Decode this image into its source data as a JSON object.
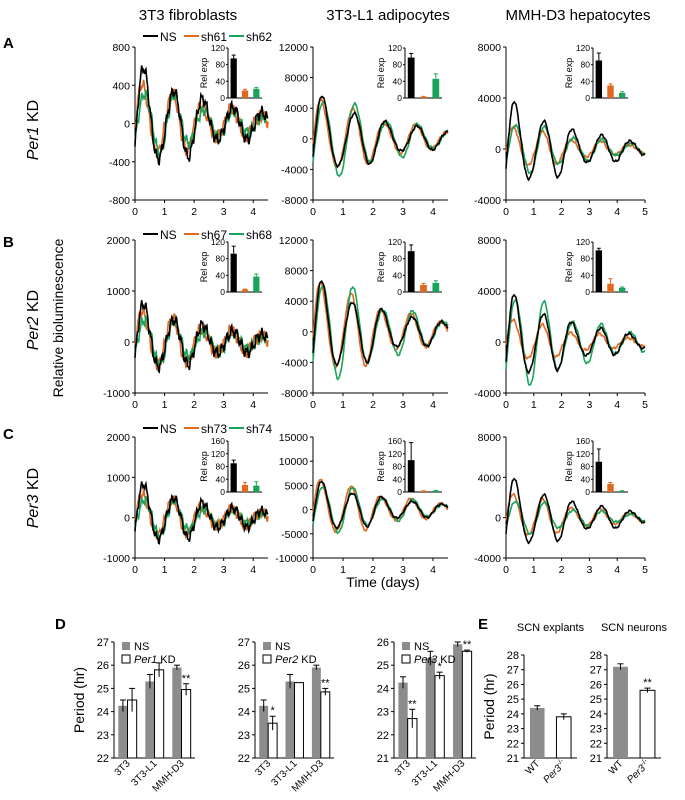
{
  "colors": {
    "ns": "#000000",
    "kd1": "#e2681f",
    "kd2": "#1aa35a",
    "bar_ns": "#8c8c8c",
    "bar_kd": "#ffffff"
  },
  "column_titles": [
    "3T3 fibroblasts",
    "3T3-L1 adipocytes",
    "MMH-D3 hepatocytes"
  ],
  "panel_letters": [
    "A",
    "B",
    "C",
    "D",
    "E"
  ],
  "row_labels": [
    {
      "gene": "Per1",
      "suffix": " KD"
    },
    {
      "gene": "Per2",
      "suffix": " KD"
    },
    {
      "gene": "Per3",
      "suffix": " KD"
    }
  ],
  "y_axis_label": "Relative bioluminescence",
  "x_axis_label": "Time (days)",
  "inset_ylabel": "Rel exp",
  "legends": [
    [
      "NS",
      "sh61",
      "sh62"
    ],
    [
      "NS",
      "sh67",
      "sh68"
    ],
    [
      "NS",
      "sh73",
      "sh74"
    ]
  ],
  "chart_data": [
    {
      "id": "A1",
      "type": "line",
      "row": 0,
      "col": 0,
      "ylim": [
        -800,
        800
      ],
      "yticks": [
        -800,
        -400,
        0,
        400,
        800
      ],
      "xlim": [
        0,
        4.5
      ],
      "xticks": [
        0,
        1,
        2,
        3,
        4
      ],
      "period_days": 1.0,
      "amplitudes": [
        700,
        560,
        500
      ],
      "inset": {
        "ymax": 120,
        "yticks": [
          0,
          40,
          80,
          120
        ],
        "values": [
          95,
          18,
          22
        ],
        "errors": [
          8,
          3,
          3
        ]
      }
    },
    {
      "id": "A2",
      "type": "line",
      "row": 0,
      "col": 1,
      "ylim": [
        -8000,
        12000
      ],
      "yticks": [
        -8000,
        -4000,
        0,
        4000,
        8000,
        12000
      ],
      "xlim": [
        0,
        4.5
      ],
      "xticks": [
        0,
        1,
        2,
        3,
        4
      ],
      "period_days": 1.05,
      "amplitudes": [
        6800,
        7000,
        7800
      ],
      "inset": {
        "ymax": 120,
        "yticks": [
          0,
          40,
          80,
          120
        ],
        "values": [
          97,
          3,
          46
        ],
        "errors": [
          10,
          1,
          12
        ]
      }
    },
    {
      "id": "A3",
      "type": "line",
      "row": 0,
      "col": 2,
      "ylim": [
        -4000,
        8000
      ],
      "yticks": [
        -4000,
        0,
        4000,
        8000
      ],
      "xlim": [
        0,
        5
      ],
      "xticks": [
        0,
        1,
        2,
        3,
        4,
        5
      ],
      "period_days": 1.04,
      "amplitudes": [
        4500,
        2400,
        3000
      ],
      "inset": {
        "ymax": 120,
        "yticks": [
          0,
          40,
          80,
          120
        ],
        "values": [
          90,
          30,
          12
        ],
        "errors": [
          18,
          4,
          3
        ]
      }
    },
    {
      "id": "B1",
      "type": "line",
      "row": 1,
      "col": 0,
      "ylim": [
        -1000,
        2000
      ],
      "yticks": [
        -1000,
        0,
        1000,
        2000
      ],
      "xlim": [
        0,
        4.5
      ],
      "xticks": [
        0,
        1,
        2,
        3,
        4
      ],
      "period_days": 1.0,
      "amplitudes": [
        900,
        820,
        700
      ],
      "inset": {
        "ymax": 120,
        "yticks": [
          0,
          40,
          80,
          120
        ],
        "values": [
          92,
          6,
          37
        ],
        "errors": [
          18,
          1,
          6
        ]
      }
    },
    {
      "id": "B2",
      "type": "line",
      "row": 1,
      "col": 1,
      "ylim": [
        -8000,
        12000
      ],
      "yticks": [
        -8000,
        -4000,
        0,
        4000,
        8000,
        12000
      ],
      "xlim": [
        0,
        4.5
      ],
      "xticks": [
        0,
        1,
        2,
        3,
        4
      ],
      "period_days": 1.0,
      "amplitudes": [
        8000,
        8800,
        9800
      ],
      "inset": {
        "ymax": 120,
        "yticks": [
          0,
          40,
          80,
          120
        ],
        "values": [
          98,
          17,
          22
        ],
        "errors": [
          15,
          4,
          5
        ]
      }
    },
    {
      "id": "B3",
      "type": "line",
      "row": 1,
      "col": 2,
      "ylim": [
        -4000,
        8000
      ],
      "yticks": [
        -4000,
        0,
        4000,
        8000
      ],
      "xlim": [
        0,
        5
      ],
      "xticks": [
        0,
        1,
        2,
        3,
        4,
        5
      ],
      "period_days": 1.03,
      "amplitudes": [
        4500,
        2400,
        5400
      ],
      "inset": {
        "ymax": 120,
        "yticks": [
          0,
          40,
          80,
          120
        ],
        "values": [
          100,
          20,
          10
        ],
        "errors": [
          5,
          12,
          2
        ]
      }
    },
    {
      "id": "C1",
      "type": "line",
      "row": 2,
      "col": 0,
      "ylim": [
        -1000,
        2000
      ],
      "yticks": [
        -1000,
        0,
        1000,
        2000
      ],
      "xlim": [
        0,
        4.5
      ],
      "xticks": [
        0,
        1,
        2,
        3,
        4
      ],
      "period_days": 1.0,
      "amplitudes": [
        1000,
        800,
        720
      ],
      "inset": {
        "ymax": 160,
        "yticks": [
          0,
          40,
          80,
          120,
          160
        ],
        "values": [
          90,
          22,
          20
        ],
        "errors": [
          10,
          8,
          12
        ]
      }
    },
    {
      "id": "C2",
      "type": "line",
      "row": 2,
      "col": 1,
      "ylim": [
        -10000,
        15000
      ],
      "yticks": [
        -10000,
        -5000,
        0,
        5000,
        10000,
        15000
      ],
      "xlim": [
        0,
        4.5
      ],
      "xticks": [
        0,
        1,
        2,
        3,
        4
      ],
      "period_days": 1.0,
      "amplitudes": [
        7000,
        8500,
        7600
      ],
      "inset": {
        "ymax": 160,
        "yticks": [
          0,
          40,
          80,
          120,
          160
        ],
        "values": [
          100,
          3,
          4
        ],
        "errors": [
          55,
          1,
          1
        ]
      }
    },
    {
      "id": "C3",
      "type": "line",
      "row": 2,
      "col": 2,
      "ylim": [
        -4000,
        8000
      ],
      "yticks": [
        -4000,
        0,
        4000,
        8000
      ],
      "xlim": [
        0,
        5
      ],
      "xticks": [
        0,
        1,
        2,
        3,
        4,
        5
      ],
      "period_days": 1.04,
      "amplitudes": [
        4700,
        3200,
        2600
      ],
      "inset": {
        "ymax": 160,
        "yticks": [
          0,
          40,
          80,
          120,
          160
        ],
        "values": [
          95,
          25,
          3
        ],
        "errors": [
          40,
          5,
          1
        ]
      }
    },
    {
      "id": "D1",
      "type": "bar",
      "categories": [
        "3T3",
        "3T3-L1",
        "MMH-D3"
      ],
      "ylabel": "Period (hr)",
      "ylim": [
        22,
        27
      ],
      "yticks": [
        22,
        23,
        24,
        25,
        26,
        27
      ],
      "legend_top": "NS",
      "legend_gene": "Per1",
      "legend_suffix": " KD",
      "series": [
        {
          "name": "NS",
          "values": [
            24.25,
            25.3,
            25.9
          ],
          "errors": [
            0.25,
            0.3,
            0.1
          ]
        },
        {
          "name": "Per1 KD",
          "values": [
            24.5,
            25.8,
            24.95
          ],
          "errors": [
            0.5,
            0.3,
            0.25
          ]
        }
      ],
      "sig": [
        "",
        "",
        "**"
      ]
    },
    {
      "id": "D2",
      "type": "bar",
      "categories": [
        "3T3",
        "3T3-L1",
        "MMH-D3"
      ],
      "ylabel": "",
      "ylim": [
        22,
        27
      ],
      "yticks": [
        22,
        23,
        24,
        25,
        26,
        27
      ],
      "legend_top": "NS",
      "legend_gene": "Per2",
      "legend_suffix": " KD",
      "series": [
        {
          "name": "NS",
          "values": [
            24.25,
            25.3,
            25.9
          ],
          "errors": [
            0.25,
            0.3,
            0.1
          ]
        },
        {
          "name": "Per2 KD",
          "values": [
            23.5,
            25.25,
            24.85
          ],
          "errors": [
            0.3,
            0,
            0.15
          ]
        }
      ],
      "sig": [
        "*",
        "",
        "**"
      ]
    },
    {
      "id": "D3",
      "type": "bar",
      "categories": [
        "3T3",
        "3T3-L1",
        "MMH-D3"
      ],
      "ylabel": "",
      "ylim": [
        21,
        26
      ],
      "yticks": [
        21,
        22,
        23,
        24,
        25,
        26
      ],
      "legend_top": "NS",
      "legend_gene": "Per3",
      "legend_suffix": " KD",
      "series": [
        {
          "name": "NS",
          "values": [
            24.25,
            25.3,
            25.9
          ],
          "errors": [
            0.25,
            0.3,
            0.1
          ]
        },
        {
          "name": "Per3 KD",
          "values": [
            22.7,
            24.55,
            25.6
          ],
          "errors": [
            0.4,
            0.15,
            0.05
          ]
        }
      ],
      "sig": [
        "**",
        "*",
        "**"
      ]
    },
    {
      "id": "E1",
      "type": "bar",
      "title": "SCN explants",
      "categories": [
        "WT",
        "Per3"
      ],
      "category_sup": [
        "",
        "-/-"
      ],
      "ylabel": "Period (hr)",
      "ylim": [
        21,
        28
      ],
      "yticks": [
        21,
        22,
        23,
        24,
        25,
        26,
        27,
        28
      ],
      "values": [
        24.4,
        23.8
      ],
      "errors": [
        0.15,
        0.2
      ],
      "sig": [
        "",
        ""
      ]
    },
    {
      "id": "E2",
      "type": "bar",
      "title": "SCN neurons",
      "categories": [
        "WT",
        "Per3"
      ],
      "category_sup": [
        "",
        "-/-"
      ],
      "ylabel": "",
      "ylim": [
        21,
        28
      ],
      "yticks": [
        21,
        22,
        23,
        24,
        25,
        26,
        27,
        28
      ],
      "values": [
        27.2,
        25.6
      ],
      "errors": [
        0.2,
        0.15
      ],
      "sig": [
        "",
        "**"
      ]
    }
  ]
}
